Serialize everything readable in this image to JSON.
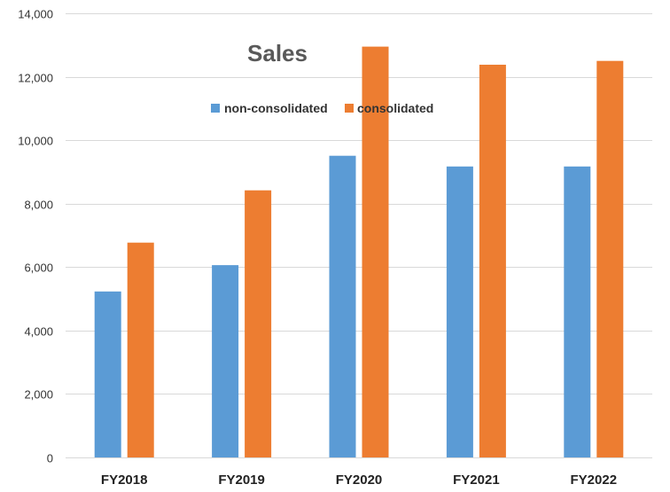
{
  "chart_data": {
    "type": "bar",
    "title": "Sales",
    "categories": [
      "FY2018",
      "FY2019",
      "FY2020",
      "FY2021",
      "FY2022"
    ],
    "series": [
      {
        "name": "non-consolidated",
        "color": "#5B9BD5",
        "values": [
          5230,
          6060,
          9510,
          9170,
          9170
        ]
      },
      {
        "name": "consolidated",
        "color": "#ED7D31",
        "values": [
          6770,
          8420,
          12950,
          12380,
          12500
        ]
      }
    ],
    "ylim": [
      0,
      14000
    ],
    "yticks": [
      0,
      2000,
      4000,
      6000,
      8000,
      10000,
      12000,
      14000
    ],
    "ytick_labels": [
      "0",
      "2,000",
      "4,000",
      "6,000",
      "8,000",
      "10,000",
      "12,000",
      "14,000"
    ],
    "grid": true,
    "legend_position": "top-center"
  }
}
